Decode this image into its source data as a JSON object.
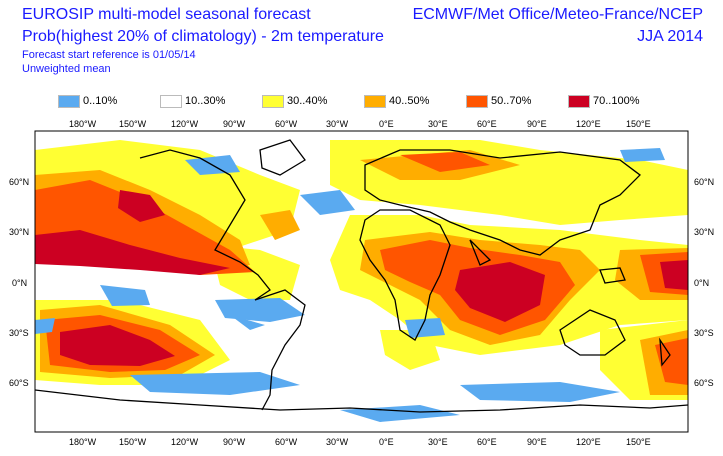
{
  "header": {
    "title_line1": "EUROSIP multi-model seasonal forecast",
    "title_line2": "Prob(highest 20% of climatology) - 2m temperature",
    "subtitle1": "Forecast start reference is 01/05/14",
    "subtitle2": "Unweighted mean",
    "source": "ECMWF/Met Office/Meteo-France/NCEP",
    "season": "JJA 2014"
  },
  "legend": [
    {
      "label": "0..10%",
      "color": "#5aaaf0"
    },
    {
      "label": "10..30%",
      "color": "#ffffff"
    },
    {
      "label": "30..40%",
      "color": "#ffff33"
    },
    {
      "label": "40..50%",
      "color": "#ffad00"
    },
    {
      "label": "50..70%",
      "color": "#ff5500"
    },
    {
      "label": "70..100%",
      "color": "#cc0022"
    }
  ],
  "axes": {
    "lon_labels": [
      "180°W",
      "150°W",
      "120°W",
      "90°W",
      "60°W",
      "30°W",
      "0°E",
      "30°E",
      "60°E",
      "90°E",
      "120°E",
      "150°E"
    ],
    "lat_labels": [
      "60°N",
      "30°N",
      "0°N",
      "30°S",
      "60°S"
    ]
  }
}
